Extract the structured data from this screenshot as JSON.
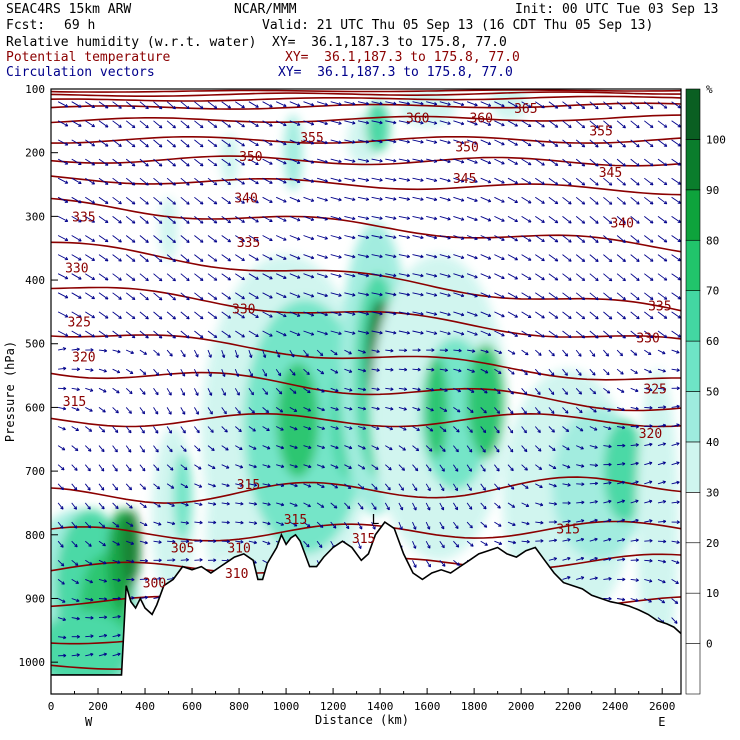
{
  "header": {
    "model": "SEAC4RS 15km ARW",
    "org": "NCAR/MMM",
    "init": "Init: 00 UTC Tue 03 Sep 13",
    "fcst_label": "Fcst:",
    "fcst_value": "69 h",
    "valid": "Valid: 21 UTC Thu 05 Sep 13 (16 CDT Thu 05 Sep 13)"
  },
  "fields": [
    {
      "name": "Relative humidity (w.r.t. water)",
      "xy": "XY=  36.1,187.3 to 175.8, 77.0",
      "color": "#000000"
    },
    {
      "name": "Potential temperature",
      "xy": "XY=  36.1,187.3 to 175.8, 77.0",
      "color": "#8b0000"
    },
    {
      "name": "Circulation vectors",
      "xy": "XY=  36.1,187.3 to 175.8, 77.0",
      "color": "#00008b"
    }
  ],
  "chart_data": {
    "type": "cross-section",
    "xlabel": "Distance (km)",
    "ylabel": "Pressure (hPa)",
    "xlim": [
      0,
      2680
    ],
    "ylim": [
      1050,
      100
    ],
    "x_ticks": [
      0,
      200,
      400,
      600,
      800,
      1000,
      1200,
      1400,
      1600,
      1800,
      2000,
      2200,
      2400,
      2600
    ],
    "y_ticks": [
      100,
      200,
      300,
      400,
      500,
      600,
      700,
      800,
      900,
      1000
    ],
    "x_end_labels": {
      "left": "W",
      "right": "E"
    },
    "colorbar": {
      "unit": "%",
      "levels": [
        0,
        10,
        20,
        30,
        40,
        50,
        60,
        70,
        80,
        90,
        100
      ],
      "colors": [
        "#ffffff",
        "#ffffff",
        "#ffffff",
        "#ffffff",
        "#cff5ef",
        "#9eecde",
        "#6ee4c6",
        "#43d7a2",
        "#21c46b",
        "#0ea33c",
        "#0a7d2c",
        "#0a5f22"
      ]
    },
    "theta_labels": [
      {
        "value": "365",
        "x": 2020,
        "p": 130
      },
      {
        "value": "360",
        "x": 1560,
        "p": 145
      },
      {
        "value": "360",
        "x": 1830,
        "p": 145
      },
      {
        "value": "355",
        "x": 1110,
        "p": 175
      },
      {
        "value": "355",
        "x": 2340,
        "p": 165
      },
      {
        "value": "350",
        "x": 850,
        "p": 205
      },
      {
        "value": "350",
        "x": 1770,
        "p": 190
      },
      {
        "value": "345",
        "x": 1760,
        "p": 240
      },
      {
        "value": "345",
        "x": 2380,
        "p": 230
      },
      {
        "value": "340",
        "x": 830,
        "p": 270
      },
      {
        "value": "340",
        "x": 2430,
        "p": 310
      },
      {
        "value": "335",
        "x": 140,
        "p": 300
      },
      {
        "value": "335",
        "x": 840,
        "p": 340
      },
      {
        "value": "335",
        "x": 2590,
        "p": 440
      },
      {
        "value": "330",
        "x": 110,
        "p": 380
      },
      {
        "value": "330",
        "x": 820,
        "p": 445
      },
      {
        "value": "330",
        "x": 2540,
        "p": 490
      },
      {
        "value": "325",
        "x": 120,
        "p": 465
      },
      {
        "value": "325",
        "x": 2570,
        "p": 570
      },
      {
        "value": "320",
        "x": 140,
        "p": 520
      },
      {
        "value": "320",
        "x": 2550,
        "p": 640
      },
      {
        "value": "315",
        "x": 100,
        "p": 590
      },
      {
        "value": "315",
        "x": 840,
        "p": 720
      },
      {
        "value": "315",
        "x": 1040,
        "p": 775
      },
      {
        "value": "315",
        "x": 2200,
        "p": 790
      },
      {
        "value": "305",
        "x": 560,
        "p": 820
      },
      {
        "value": "310",
        "x": 800,
        "p": 820
      },
      {
        "value": "310",
        "x": 790,
        "p": 860
      },
      {
        "value": "300",
        "x": 440,
        "p": 875
      },
      {
        "value": "315",
        "x": 1330,
        "p": 805
      }
    ],
    "low_marker": {
      "text": "L",
      "x": 1380,
      "p": 775
    },
    "terrain": [
      [
        0,
        1020
      ],
      [
        300,
        1020
      ],
      [
        320,
        880
      ],
      [
        340,
        905
      ],
      [
        360,
        915
      ],
      [
        380,
        900
      ],
      [
        400,
        915
      ],
      [
        430,
        925
      ],
      [
        450,
        910
      ],
      [
        480,
        880
      ],
      [
        520,
        870
      ],
      [
        560,
        850
      ],
      [
        600,
        855
      ],
      [
        640,
        850
      ],
      [
        680,
        860
      ],
      [
        720,
        850
      ],
      [
        760,
        840
      ],
      [
        780,
        835
      ],
      [
        820,
        830
      ],
      [
        860,
        840
      ],
      [
        880,
        870
      ],
      [
        900,
        870
      ],
      [
        920,
        845
      ],
      [
        960,
        820
      ],
      [
        980,
        800
      ],
      [
        1000,
        815
      ],
      [
        1020,
        805
      ],
      [
        1040,
        800
      ],
      [
        1060,
        810
      ],
      [
        1080,
        830
      ],
      [
        1100,
        850
      ],
      [
        1130,
        850
      ],
      [
        1160,
        835
      ],
      [
        1200,
        820
      ],
      [
        1240,
        810
      ],
      [
        1280,
        820
      ],
      [
        1320,
        840
      ],
      [
        1350,
        830
      ],
      [
        1380,
        800
      ],
      [
        1420,
        780
      ],
      [
        1460,
        790
      ],
      [
        1500,
        830
      ],
      [
        1540,
        860
      ],
      [
        1580,
        870
      ],
      [
        1620,
        860
      ],
      [
        1660,
        855
      ],
      [
        1700,
        860
      ],
      [
        1740,
        850
      ],
      [
        1780,
        840
      ],
      [
        1820,
        830
      ],
      [
        1860,
        825
      ],
      [
        1900,
        820
      ],
      [
        1940,
        830
      ],
      [
        1980,
        835
      ],
      [
        2020,
        825
      ],
      [
        2060,
        820
      ],
      [
        2100,
        840
      ],
      [
        2140,
        860
      ],
      [
        2180,
        875
      ],
      [
        2220,
        880
      ],
      [
        2260,
        885
      ],
      [
        2300,
        895
      ],
      [
        2340,
        900
      ],
      [
        2380,
        905
      ],
      [
        2420,
        908
      ],
      [
        2460,
        912
      ],
      [
        2500,
        918
      ],
      [
        2540,
        925
      ],
      [
        2580,
        935
      ],
      [
        2620,
        940
      ],
      [
        2650,
        945
      ],
      [
        2680,
        955
      ]
    ]
  }
}
